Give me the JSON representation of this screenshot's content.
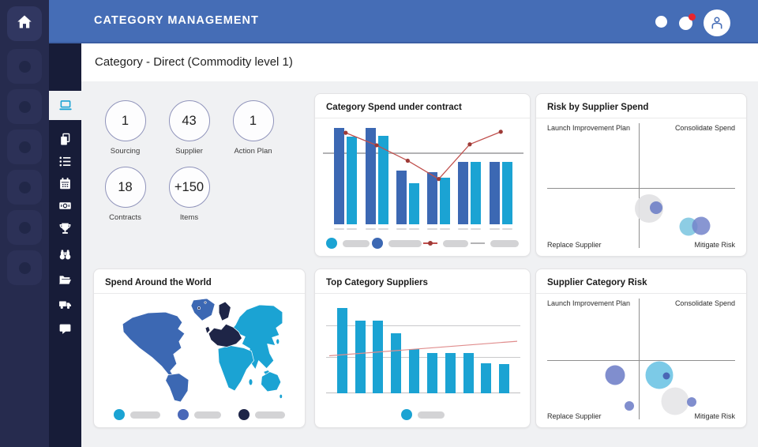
{
  "header": {
    "title": "CATEGORY MANAGEMENT",
    "right_icons": [
      {
        "name": "status-dot"
      },
      {
        "name": "notifications",
        "badge": true,
        "badge_color": "#e8262d"
      },
      {
        "name": "user-avatar"
      }
    ]
  },
  "page": {
    "title": "Category - Direct (Commodity level 1)"
  },
  "sidebar": {
    "outer_placeholders": 6,
    "inner_items": [
      {
        "name": "laptop",
        "active": true
      },
      {
        "name": "copy-pages",
        "active": false
      },
      {
        "name": "list",
        "active": false
      },
      {
        "name": "calendar",
        "active": false
      },
      {
        "name": "money",
        "active": false
      },
      {
        "name": "trophy",
        "active": false
      },
      {
        "name": "binoculars",
        "active": false
      },
      {
        "name": "folder-open",
        "active": false
      },
      {
        "name": "truck",
        "active": false
      },
      {
        "name": "chat",
        "active": false
      }
    ]
  },
  "kpis": [
    {
      "value": "1",
      "label": "Sourcing"
    },
    {
      "value": "43",
      "label": "Supplier"
    },
    {
      "value": "1",
      "label": "Action Plan"
    },
    {
      "value": "18",
      "label": "Contracts"
    },
    {
      "value": "+150",
      "label": "Items"
    }
  ],
  "colors": {
    "accent_blue": "#456db6",
    "bar_dark_blue": "#3c68b3",
    "bar_cyan": "#1ba3d3",
    "line_red": "#c0504d",
    "navy": "#1e2547",
    "sidebar_outer": "#262b4e",
    "sidebar_inner": "#171c38"
  },
  "chart_data": [
    {
      "id": "category-spend-under-contract",
      "type": "bar",
      "title": "Category Spend under contract",
      "x_labels_redacted": 12,
      "ylim": [
        0,
        100
      ],
      "series": [
        {
          "name": "bar-series-dark-blue",
          "color": "#3c68b3",
          "values": [
            100,
            100,
            56,
            54,
            65,
            65
          ]
        },
        {
          "name": "bar-series-cyan",
          "color": "#1ba3d3",
          "values": [
            91,
            92,
            43,
            48,
            65,
            65
          ]
        }
      ],
      "line_series": {
        "name": "line-series-red",
        "color": "#c0504d",
        "dot_color": "#9e3a36",
        "values": [
          95,
          82,
          66,
          47,
          83,
          96
        ]
      },
      "reference_line": {
        "color": "#b3b3b5",
        "value": 73
      },
      "legend": [
        {
          "swatch": "dot",
          "color": "#1ba3d3",
          "label_redacted": true,
          "pill_width": 34
        },
        {
          "swatch": "dot",
          "color": "#3c68b3",
          "label_redacted": true,
          "pill_width": 42
        },
        {
          "swatch": "line-dot",
          "color": "#c0504d",
          "label_redacted": true,
          "pill_width": 32
        },
        {
          "swatch": "line",
          "color": "#b3b3b5",
          "label_redacted": true,
          "pill_width": 36
        }
      ],
      "legend_position": "bottom"
    },
    {
      "id": "risk-by-supplier-spend",
      "type": "scatter",
      "title": "Risk by Supplier Spend",
      "quadrant_labels": {
        "top_left": "Launch Improvement Plan",
        "top_right": "Consolidate Spend",
        "bottom_left": "Replace Supplier",
        "bottom_right": "Mitigate Risk"
      },
      "v_axis_pct": 49,
      "h_axis_pct": 51,
      "bubbles": [
        {
          "x": 54,
          "y": 66.5,
          "r": 18,
          "color": "#e3e3e5",
          "opacity": 0.95
        },
        {
          "x": 57.5,
          "y": 66,
          "r": 8,
          "color": "#6e80c6",
          "opacity": 0.9
        },
        {
          "x": 74,
          "y": 80,
          "r": 11.5,
          "color": "#79c4df",
          "opacity": 0.85
        },
        {
          "x": 80,
          "y": 79.5,
          "r": 11.5,
          "color": "#7384ca",
          "opacity": 0.85
        }
      ]
    },
    {
      "id": "spend-around-the-world",
      "type": "map",
      "title": "Spend Around the World",
      "regions": [
        {
          "name": "americas",
          "color": "#3c68b3"
        },
        {
          "name": "europe",
          "color": "#1e2547"
        },
        {
          "name": "africa-asia-oceania",
          "color": "#1ba3d3"
        }
      ],
      "legend": [
        {
          "swatch": "dot",
          "color": "#1ba3d3",
          "label_redacted": true,
          "pill_width": 38
        },
        {
          "swatch": "dot",
          "color": "#4a68b8",
          "label_redacted": true,
          "pill_width": 34
        },
        {
          "swatch": "dot",
          "color": "#1e2547",
          "label_redacted": true,
          "pill_width": 38
        }
      ],
      "legend_position": "bottom-center"
    },
    {
      "id": "top-category-suppliers",
      "type": "bar",
      "title": "Top Category Suppliers",
      "bar_color": "#1ba3d3",
      "values": [
        100,
        85,
        85,
        70,
        52,
        47,
        47,
        47,
        35,
        34
      ],
      "ylim": [
        0,
        100
      ],
      "gridlines_pct": [
        0,
        42,
        79
      ],
      "trend_line": {
        "color": "#e08d8d",
        "start_pct": 44,
        "end_pct": 61
      },
      "legend": [
        {
          "swatch": "dot",
          "color": "#1ba3d3",
          "label_redacted": true,
          "pill_width": 34
        }
      ],
      "legend_position": "bottom-center"
    },
    {
      "id": "supplier-category-risk",
      "type": "scatter",
      "title": "Supplier Category Risk",
      "quadrant_labels": {
        "top_left": "Launch Improvement Plan",
        "top_right": "Consolidate Spend",
        "bottom_left": "Replace Supplier",
        "bottom_right": "Mitigate Risk"
      },
      "v_axis_pct": 49,
      "h_axis_pct": 50,
      "bubbles": [
        {
          "x": 37,
          "y": 62,
          "r": 12.5,
          "color": "#7282c9",
          "opacity": 0.9
        },
        {
          "x": 59,
          "y": 62,
          "r": 17.5,
          "color": "#6ec4e4",
          "opacity": 0.9
        },
        {
          "x": 62.5,
          "y": 62.5,
          "r": 4.5,
          "color": "#4a67b5",
          "opacity": 1
        },
        {
          "x": 67,
          "y": 82,
          "r": 17.5,
          "color": "#e7e7e9",
          "opacity": 0.95
        },
        {
          "x": 75.5,
          "y": 82.5,
          "r": 6,
          "color": "#7282c9",
          "opacity": 0.9
        },
        {
          "x": 44,
          "y": 85.5,
          "r": 6,
          "color": "#7282c9",
          "opacity": 0.9
        }
      ]
    }
  ]
}
